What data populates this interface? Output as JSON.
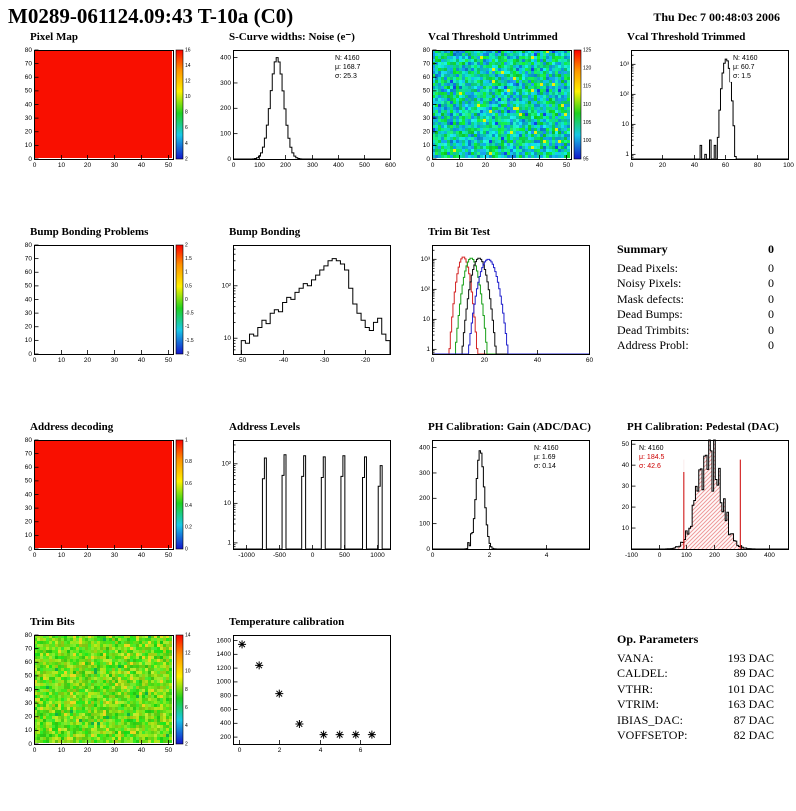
{
  "header": {
    "title": "M0289-061124.09:43 T-10a (C0)",
    "timestamp": "Thu Dec 7 00:48:03 2006"
  },
  "summary": {
    "title": "Summary",
    "value": "0",
    "rows": [
      {
        "label": "Dead Pixels:",
        "value": "0"
      },
      {
        "label": "Noisy Pixels:",
        "value": "0"
      },
      {
        "label": "Mask defects:",
        "value": "0"
      },
      {
        "label": "Dead Bumps:",
        "value": "0"
      },
      {
        "label": "Dead Trimbits:",
        "value": "0"
      },
      {
        "label": "Address Probl:",
        "value": "0"
      }
    ]
  },
  "op_parameters": {
    "title": "Op. Parameters",
    "rows": [
      {
        "label": "VANA:",
        "value": "193 DAC"
      },
      {
        "label": "CALDEL:",
        "value": "89 DAC"
      },
      {
        "label": "VTHR:",
        "value": "101 DAC"
      },
      {
        "label": "VTRIM:",
        "value": "163 DAC"
      },
      {
        "label": "IBIAS_DAC:",
        "value": "87 DAC"
      },
      {
        "label": "VOFFSETOP:",
        "value": "82 DAC"
      }
    ]
  },
  "chart_data": [
    {
      "title": "Pixel Map",
      "type": "heatmap",
      "style": "uniform-red",
      "xlim": [
        0,
        52
      ],
      "x_ticks": [
        0,
        10,
        20,
        30,
        40,
        50
      ],
      "ylim": [
        0,
        80
      ],
      "y_ticks": [
        0,
        10,
        20,
        30,
        40,
        50,
        60,
        70,
        80
      ],
      "colorbar_ticks": [
        2,
        4,
        6,
        8,
        10,
        12,
        14,
        16
      ]
    },
    {
      "title": "S-Curve widths: Noise (e⁻)",
      "type": "hist",
      "xlim": [
        0,
        600
      ],
      "x_ticks": [
        0,
        100,
        200,
        300,
        400,
        500,
        600
      ],
      "ylim": [
        0,
        430
      ],
      "y_ticks": [
        0,
        100,
        200,
        300,
        400
      ],
      "stats": {
        "N": "4160",
        "mu": "168.7",
        "sigma": "25.3"
      },
      "gauss": {
        "mean": 168.7,
        "sigma": 25.3,
        "peak": 400
      },
      "bins": 80
    },
    {
      "title": "Vcal Threshold Untrimmed",
      "type": "heatmap",
      "style": "noise-green",
      "xlim": [
        0,
        52
      ],
      "x_ticks": [
        0,
        10,
        20,
        30,
        40,
        50
      ],
      "ylim": [
        0,
        80
      ],
      "y_ticks": [
        0,
        10,
        20,
        30,
        40,
        50,
        60,
        70,
        80
      ],
      "colorbar_ticks": [
        95,
        100,
        105,
        110,
        115,
        120,
        125
      ]
    },
    {
      "title": "Vcal Threshold Trimmed",
      "type": "hist",
      "log_y": true,
      "xlim": [
        0,
        100
      ],
      "x_ticks": [
        0,
        20,
        40,
        60,
        80,
        100
      ],
      "ylim": [
        0.7,
        3000
      ],
      "y_ticks": [
        1,
        10,
        100,
        1000
      ],
      "stats": {
        "N": "4160",
        "mu": "60.7",
        "sigma": "1.5"
      },
      "gauss": {
        "mean": 60.7,
        "sigma": 1.5,
        "peak": 1500
      },
      "bins": 100,
      "extra_bins": [
        {
          "x": 44,
          "h": 2
        },
        {
          "x": 47,
          "h": 1
        },
        {
          "x": 50,
          "h": 3
        },
        {
          "x": 53,
          "h": 2
        },
        {
          "x": 55,
          "h": 1
        }
      ]
    },
    {
      "title": "Bump Bonding Problems",
      "type": "heatmap",
      "style": "empty",
      "xlim": [
        0,
        52
      ],
      "x_ticks": [
        0,
        10,
        20,
        30,
        40,
        50
      ],
      "ylim": [
        0,
        80
      ],
      "y_ticks": [
        0,
        10,
        20,
        30,
        40,
        50,
        60,
        70,
        80
      ],
      "colorbar_ticks": [
        -2,
        -1.5,
        -1,
        -0.5,
        0,
        0.5,
        1,
        1.5,
        2
      ]
    },
    {
      "title": "Bump Bonding",
      "type": "hist-bins",
      "log_y": true,
      "xlim": [
        -52,
        -14
      ],
      "x_ticks": [
        -50,
        -40,
        -30,
        -20
      ],
      "ylim": [
        5,
        600
      ],
      "y_ticks": [
        10,
        100
      ],
      "bin_start": -50,
      "bin_width": 1,
      "values": [
        9,
        8,
        12,
        11,
        16,
        22,
        19,
        30,
        35,
        32,
        48,
        60,
        55,
        75,
        90,
        110,
        100,
        130,
        160,
        200,
        240,
        300,
        330,
        300,
        260,
        200,
        90,
        45,
        30,
        22,
        16,
        14,
        20,
        24,
        12,
        9
      ]
    },
    {
      "title": "Trim Bit Test",
      "type": "hist-multi",
      "log_y": true,
      "xlim": [
        0,
        60
      ],
      "x_ticks": [
        0,
        20,
        40,
        60
      ],
      "ylim": [
        0.7,
        3000
      ],
      "y_ticks": [
        1,
        10,
        100,
        1000
      ],
      "series": [
        {
          "color": "#d42424",
          "mean": 12,
          "sigma": 1.4,
          "peak": 1200
        },
        {
          "color": "#18a018",
          "mean": 15,
          "sigma": 1.6,
          "peak": 1100
        },
        {
          "color": "#101010",
          "mean": 18,
          "sigma": 1.7,
          "peak": 1100
        },
        {
          "color": "#2020cc",
          "mean": 21.5,
          "sigma": 2.0,
          "peak": 1000
        }
      ]
    },
    {
      "title": "Address decoding",
      "type": "heatmap",
      "style": "uniform-red",
      "xlim": [
        0,
        52
      ],
      "x_ticks": [
        0,
        10,
        20,
        30,
        40,
        50
      ],
      "ylim": [
        0,
        80
      ],
      "y_ticks": [
        0,
        10,
        20,
        30,
        40,
        50,
        60,
        70,
        80
      ],
      "colorbar_ticks": [
        0,
        0.2,
        0.4,
        0.6,
        0.8,
        1
      ]
    },
    {
      "title": "Address Levels",
      "type": "spikes",
      "log_y": true,
      "xlim": [
        -1200,
        1200
      ],
      "x_ticks": [
        -1000,
        -500,
        0,
        500,
        1000
      ],
      "ylim": [
        0.7,
        400
      ],
      "y_ticks": [
        1,
        10,
        100
      ],
      "spikes": [
        {
          "x": -720,
          "h": 140
        },
        {
          "x": -420,
          "h": 170
        },
        {
          "x": -120,
          "h": 160
        },
        {
          "x": 180,
          "h": 150
        },
        {
          "x": 480,
          "h": 160
        },
        {
          "x": 800,
          "h": 150
        },
        {
          "x": 1050,
          "h": 90
        }
      ]
    },
    {
      "title": "PH Calibration: Gain (ADC/DAC)",
      "type": "hist",
      "xlim": [
        0,
        5.5
      ],
      "x_ticks": [
        0,
        2,
        4
      ],
      "ylim": [
        0,
        430
      ],
      "y_ticks": [
        0,
        100,
        200,
        300,
        400
      ],
      "stats": {
        "N": "4160",
        "mu": "1.69",
        "sigma": "0.14"
      },
      "gauss": {
        "mean": 1.69,
        "sigma": 0.14,
        "peak": 390
      },
      "bins": 110,
      "extra_bins": [
        {
          "x": 1.25,
          "h": 25
        },
        {
          "x": 1.35,
          "h": 60
        }
      ]
    },
    {
      "title": "PH Calibration: Pedestal (DAC)",
      "type": "hist",
      "xlim": [
        -100,
        470
      ],
      "x_ticks": [
        -100,
        0,
        100,
        200,
        300,
        400
      ],
      "ylim": [
        0,
        52
      ],
      "y_ticks": [
        10,
        20,
        30,
        40,
        50
      ],
      "stats": {
        "N": "4160",
        "mu": "184.5",
        "sigma": "42.6"
      },
      "stats_pos": "left",
      "stats_color": "#cc0000",
      "gauss": {
        "mean": 184.5,
        "sigma": 42.6,
        "peak": 44
      },
      "bins": 95,
      "noisy": true,
      "fill": "hatch-red",
      "vlines": [
        {
          "x": 90
        },
        {
          "x": 295
        }
      ],
      "vline_color": "#cc0000"
    },
    {
      "title": "Trim Bits",
      "type": "heatmap",
      "style": "noise-yellowgreen",
      "xlim": [
        0,
        52
      ],
      "x_ticks": [
        0,
        10,
        20,
        30,
        40,
        50
      ],
      "ylim": [
        0,
        80
      ],
      "y_ticks": [
        0,
        10,
        20,
        30,
        40,
        50,
        60,
        70,
        80
      ],
      "colorbar_ticks": [
        2,
        4,
        6,
        8,
        10,
        12,
        14
      ]
    },
    {
      "title": "Temperature calibration",
      "type": "scatter",
      "xlim": [
        -0.3,
        7.5
      ],
      "x_ticks": [
        0,
        2,
        4,
        6
      ],
      "ylim": [
        100,
        1680
      ],
      "y_ticks": [
        200,
        400,
        600,
        800,
        1000,
        1200,
        1400,
        1600
      ],
      "points": [
        [
          0.15,
          1545
        ],
        [
          1,
          1240
        ],
        [
          2,
          830
        ],
        [
          3,
          390
        ],
        [
          4.2,
          235
        ],
        [
          5,
          235
        ],
        [
          5.8,
          235
        ],
        [
          6.6,
          235
        ]
      ]
    }
  ]
}
